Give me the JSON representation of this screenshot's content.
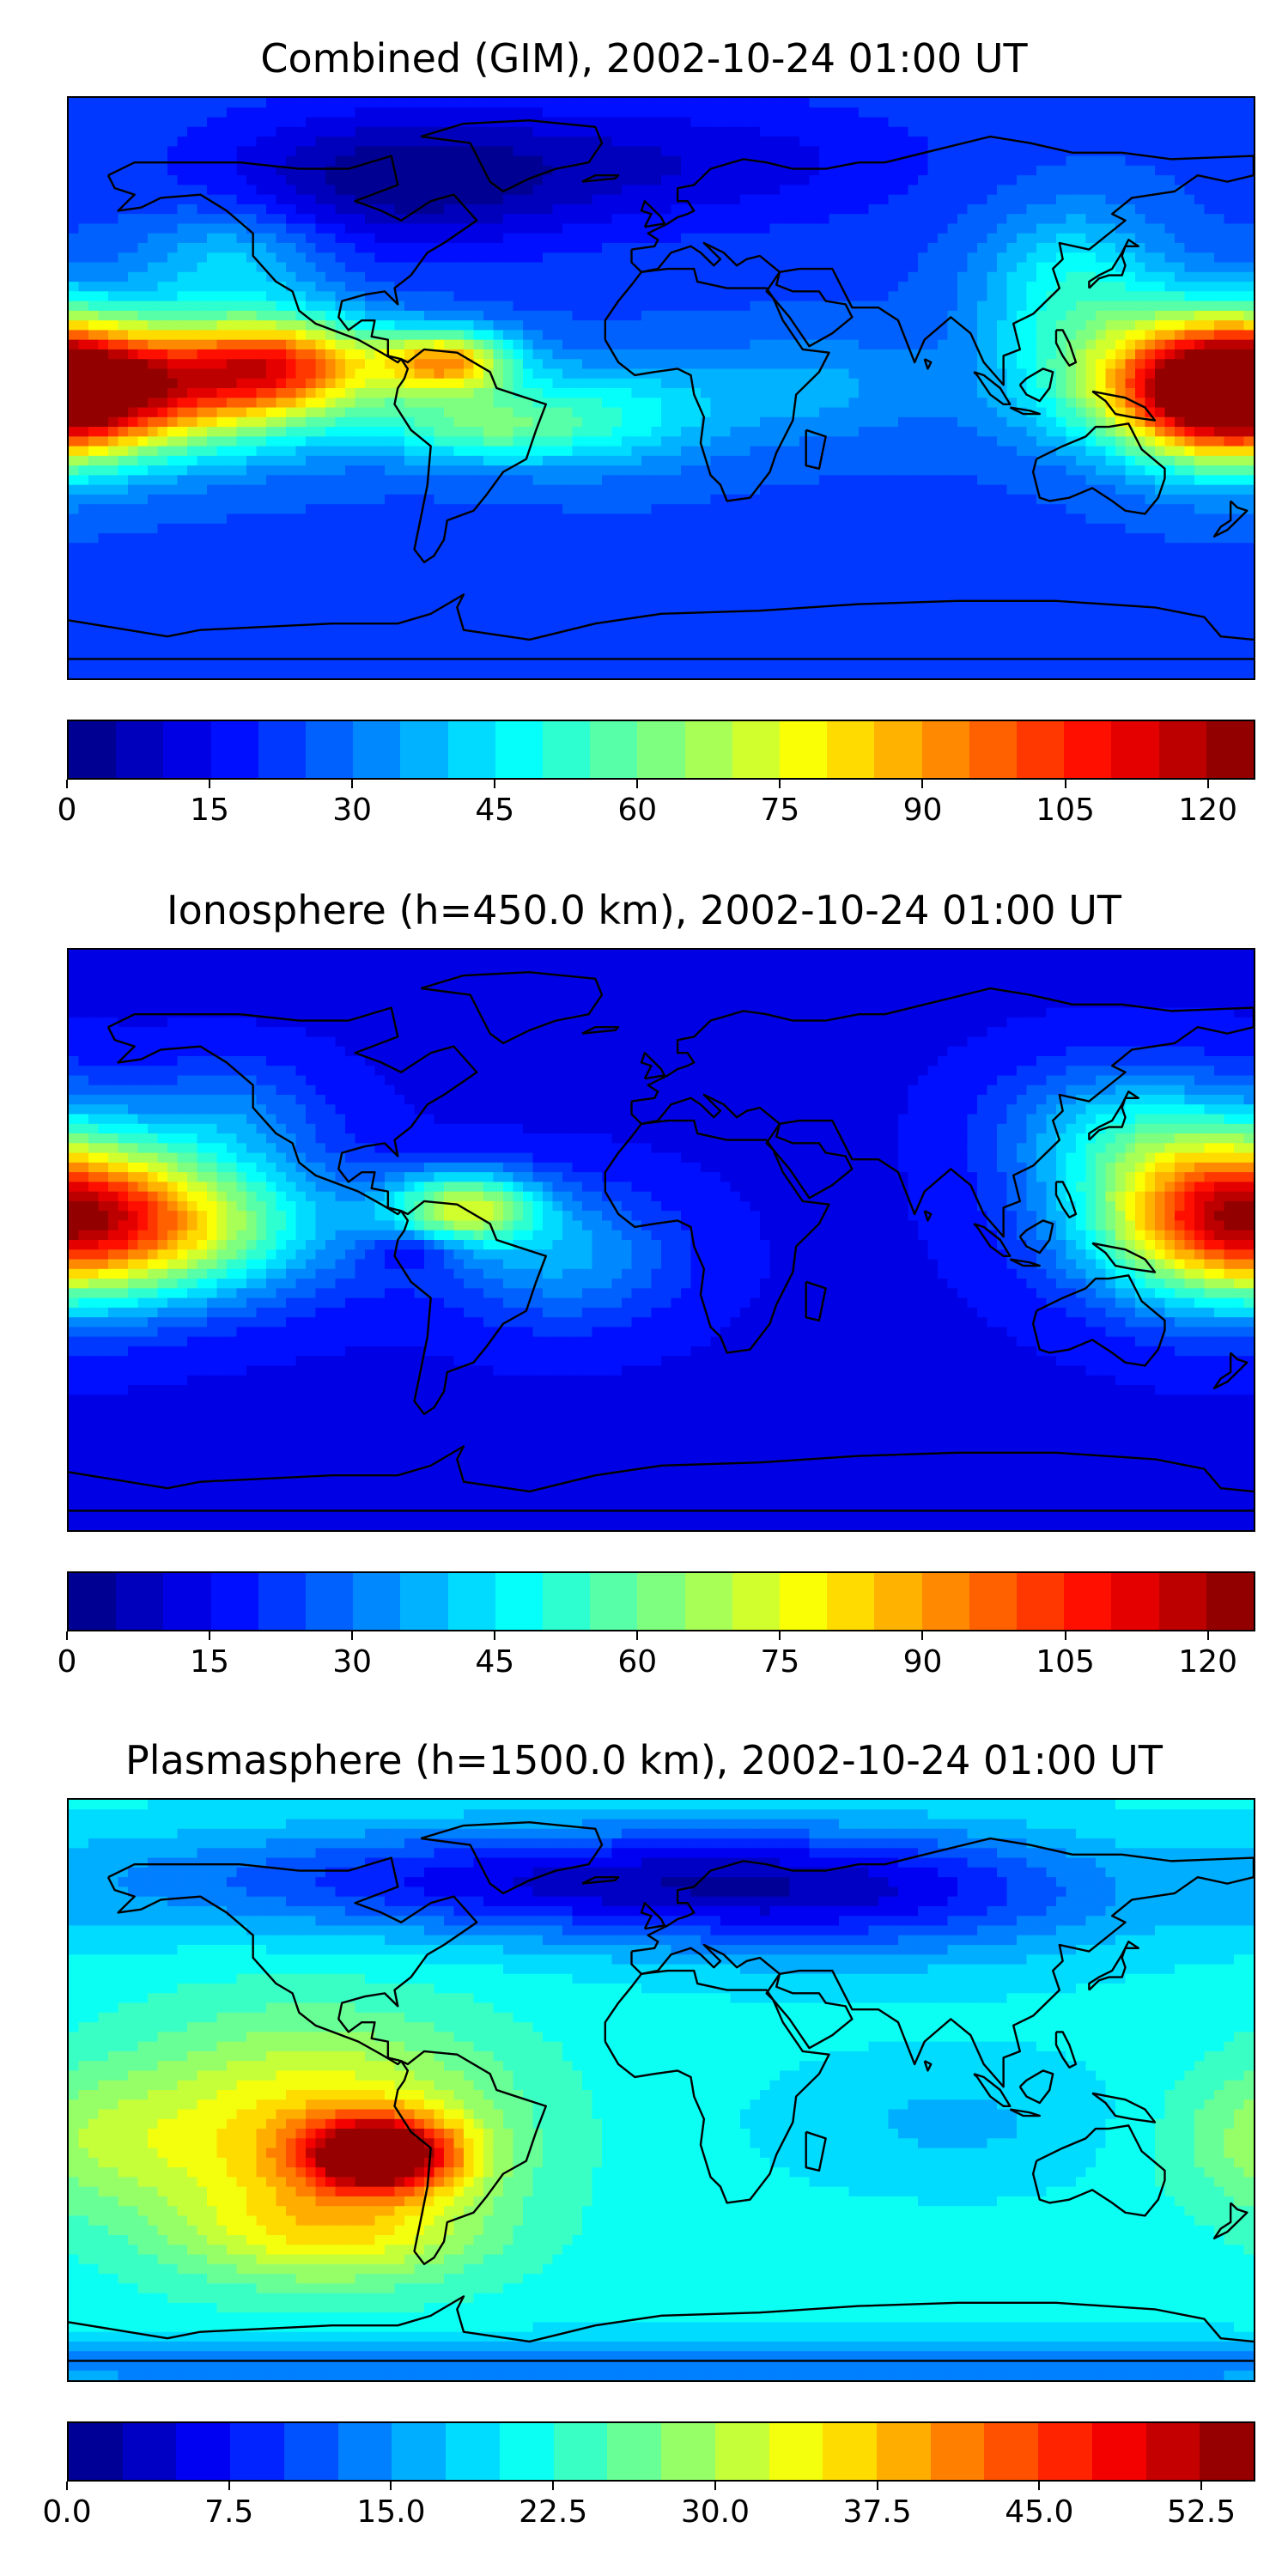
{
  "figure": {
    "panels": [
      {
        "id": "combined",
        "title": "Combined (GIM), 2002-10-24 01:00 UT",
        "colorbar": {
          "min": 0,
          "max": 125,
          "levels": 25,
          "ticks": [
            0,
            15,
            30,
            45,
            60,
            75,
            90,
            105,
            120
          ],
          "tick_labels": [
            "0",
            "15",
            "30",
            "45",
            "60",
            "75",
            "90",
            "105",
            "120"
          ]
        },
        "field": {
          "base": 24,
          "blobs": [
            {
              "lon": -165,
              "lat": 0,
              "amp": 78,
              "slon": 45,
              "slat": 14
            },
            {
              "lon": -115,
              "lat": 8,
              "amp": 50,
              "slon": 22,
              "slat": 10
            },
            {
              "lon": -65,
              "lat": 8,
              "amp": 58,
              "slon": 14,
              "slat": 7
            },
            {
              "lon": -55,
              "lat": -12,
              "amp": 28,
              "slon": 22,
              "slat": 8
            },
            {
              "lon": 170,
              "lat": 0,
              "amp": 72,
              "slon": 22,
              "slat": 16
            },
            {
              "lon": 125,
              "lat": 30,
              "amp": 25,
              "slon": 20,
              "slat": 18
            },
            {
              "lon": -15,
              "lat": -8,
              "amp": 22,
              "slon": 25,
              "slat": 12
            },
            {
              "lon": 45,
              "lat": 0,
              "amp": 12,
              "slon": 25,
              "slat": 12
            },
            {
              "lon": -130,
              "lat": 40,
              "amp": 18,
              "slon": 20,
              "slat": 12
            },
            {
              "lon": -80,
              "lat": 65,
              "amp": -22,
              "slon": 40,
              "slat": 15
            },
            {
              "lon": 10,
              "lat": 70,
              "amp": -12,
              "slon": 50,
              "slat": 14
            }
          ]
        }
      },
      {
        "id": "ionosphere",
        "title": "Ionosphere  (h=450.0 km), 2002-10-24 01:00 UT",
        "colorbar": {
          "min": 0,
          "max": 125,
          "levels": 25,
          "ticks": [
            0,
            15,
            30,
            45,
            60,
            75,
            90,
            105,
            120
          ],
          "tick_labels": [
            "0",
            "15",
            "30",
            "45",
            "60",
            "75",
            "90",
            "105",
            "120"
          ]
        },
        "field": {
          "base": 14,
          "blobs": [
            {
              "lon": -160,
              "lat": 5,
              "amp": 65,
              "slon": 40,
              "slat": 16
            },
            {
              "lon": -60,
              "lat": 10,
              "amp": 52,
              "slon": 16,
              "slat": 8
            },
            {
              "lon": -75,
              "lat": -3,
              "amp": -14,
              "slon": 10,
              "slat": 4
            },
            {
              "lon": 170,
              "lat": 10,
              "amp": 58,
              "slon": 28,
              "slat": 20
            },
            {
              "lon": 135,
              "lat": 35,
              "amp": 20,
              "slon": 25,
              "slat": 15
            },
            {
              "lon": -30,
              "lat": -5,
              "amp": 22,
              "slon": 25,
              "slat": 15
            },
            {
              "lon": -130,
              "lat": 40,
              "amp": 14,
              "slon": 20,
              "slat": 12
            }
          ]
        }
      },
      {
        "id": "plasmasphere",
        "title": "Plasmasphere (h=1500.0 km), 2002-10-24 01:00 UT",
        "colorbar": {
          "min": 0,
          "max": 55,
          "levels": 22,
          "ticks": [
            0,
            7.5,
            15,
            22.5,
            30,
            37.5,
            45,
            52.5
          ],
          "tick_labels": [
            "0.0",
            "7.5",
            "15.0",
            "22.5",
            "30.0",
            "37.5",
            "45.0",
            "52.5"
          ]
        },
        "field": {
          "base": 21,
          "blobs": [
            {
              "lon": -85,
              "lat": -20,
              "amp": 32,
              "slon": 16,
              "slat": 8
            },
            {
              "lon": -105,
              "lat": -15,
              "amp": 16,
              "slon": 40,
              "slat": 25
            },
            {
              "lon": -100,
              "lat": -45,
              "amp": 8,
              "slon": 30,
              "slat": 10
            },
            {
              "lon": -175,
              "lat": -15,
              "amp": 6,
              "slon": 25,
              "slat": 15
            },
            {
              "lon": -40,
              "lat": 65,
              "amp": -14,
              "slon": 90,
              "slat": 12
            },
            {
              "lon": 60,
              "lat": 60,
              "amp": -10,
              "slon": 60,
              "slat": 15
            },
            {
              "lon": 90,
              "lat": -10,
              "amp": -4,
              "slon": 40,
              "slat": 15
            },
            {
              "lon": 0,
              "lat": -85,
              "amp": -8,
              "slon": 360,
              "slat": 6
            }
          ]
        }
      }
    ]
  },
  "colors": {
    "jet_stops": [
      "#00007f",
      "#0000ff",
      "#007fff",
      "#00ffff",
      "#7fff7f",
      "#ffff00",
      "#ff7f00",
      "#ff0000",
      "#7f0000"
    ],
    "coastline": "#000000"
  }
}
